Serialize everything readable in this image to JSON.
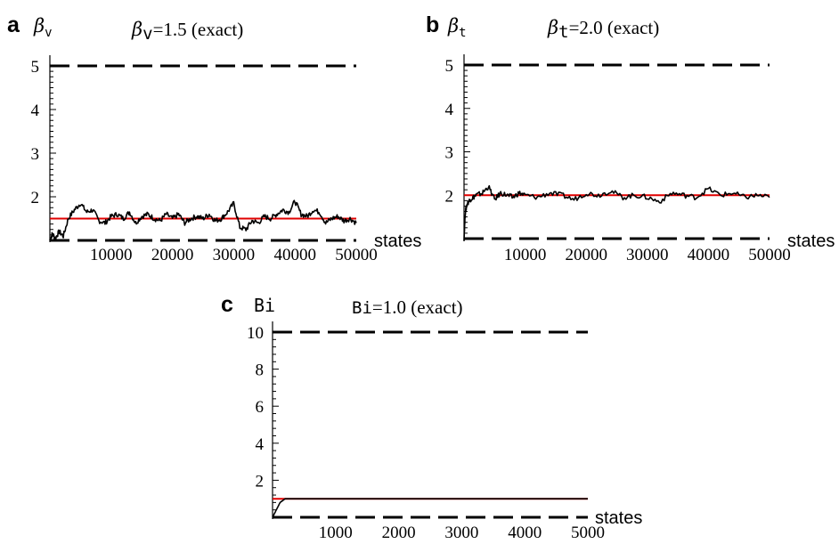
{
  "chart_data": [
    {
      "panel": "a",
      "type": "line",
      "ylabel_symbol": "β",
      "ylabel_sub": "v",
      "title_symbol": "β",
      "title_sub": "v",
      "title_text": "=1.5 (exact)",
      "xlabel": "states",
      "xlim": [
        0,
        50000
      ],
      "ylim": [
        1,
        5
      ],
      "xticks": [
        10000,
        20000,
        30000,
        40000,
        50000
      ],
      "yticks": [
        2,
        3,
        4,
        5
      ],
      "reference_lines": {
        "exact": 1.5,
        "upper_bound": 5,
        "lower_bound": 1
      },
      "series": [
        {
          "x": [
            0,
            400,
            900,
            1500,
            2200,
            3000,
            4000,
            5000,
            6000,
            7000,
            8000,
            9000,
            10000,
            11000,
            12000,
            13000,
            14000,
            15000,
            16000,
            17000,
            18000,
            19000,
            20000,
            21000,
            22000,
            23000,
            24000,
            25000,
            26000,
            27000,
            28000,
            29000,
            30000,
            31000,
            32000,
            33000,
            34000,
            35000,
            36000,
            37000,
            38000,
            39000,
            40000,
            41000,
            42000,
            43000,
            44000,
            45000,
            46000,
            47000,
            48000,
            49000,
            50000
          ],
          "y": [
            1.0,
            1.15,
            1.05,
            1.2,
            1.1,
            1.5,
            1.7,
            1.85,
            1.65,
            1.7,
            1.45,
            1.4,
            1.55,
            1.6,
            1.5,
            1.65,
            1.4,
            1.55,
            1.6,
            1.5,
            1.45,
            1.6,
            1.5,
            1.6,
            1.4,
            1.5,
            1.55,
            1.5,
            1.6,
            1.45,
            1.5,
            1.65,
            1.85,
            1.3,
            1.25,
            1.45,
            1.4,
            1.55,
            1.5,
            1.6,
            1.7,
            1.65,
            1.9,
            1.6,
            1.55,
            1.7,
            1.65,
            1.4,
            1.5,
            1.55,
            1.45,
            1.5,
            1.4
          ]
        }
      ]
    },
    {
      "panel": "b",
      "type": "line",
      "ylabel_symbol": "β",
      "ylabel_sub": "t",
      "title_symbol": "β",
      "title_sub": "t",
      "title_text": "=2.0 (exact)",
      "xlabel": "states",
      "xlim": [
        0,
        50000
      ],
      "ylim": [
        1,
        5
      ],
      "xticks": [
        10000,
        20000,
        30000,
        40000,
        50000
      ],
      "yticks": [
        2,
        3,
        4,
        5
      ],
      "reference_lines": {
        "exact": 2.0,
        "upper_bound": 5,
        "lower_bound": 1
      },
      "series": [
        {
          "x": [
            0,
            200,
            500,
            1000,
            1500,
            2000,
            3000,
            4000,
            5000,
            6000,
            7000,
            8000,
            9000,
            10000,
            12000,
            14000,
            16000,
            18000,
            20000,
            22000,
            24000,
            26000,
            28000,
            30000,
            32000,
            34000,
            36000,
            38000,
            40000,
            42000,
            44000,
            46000,
            48000,
            50000
          ],
          "y": [
            1.0,
            1.6,
            1.8,
            1.9,
            1.95,
            2.0,
            2.05,
            2.2,
            1.9,
            2.05,
            2.0,
            1.95,
            2.05,
            2.0,
            1.95,
            2.05,
            2.0,
            1.9,
            2.05,
            2.0,
            2.1,
            1.95,
            2.0,
            1.95,
            1.85,
            2.05,
            2.0,
            1.95,
            2.15,
            2.0,
            2.05,
            1.95,
            2.0,
            1.95
          ]
        }
      ]
    },
    {
      "panel": "c",
      "type": "line",
      "ylabel": "Bi",
      "title_label": "Bi",
      "title_text": "=1.0 (exact)",
      "xlabel": "states",
      "xlim": [
        0,
        5000
      ],
      "ylim": [
        0,
        10
      ],
      "xticks": [
        1000,
        2000,
        3000,
        4000,
        5000
      ],
      "yticks": [
        2,
        4,
        6,
        8,
        10
      ],
      "reference_lines": {
        "exact": 1.0,
        "upper_bound": 10,
        "lower_bound": 0
      },
      "series": [
        {
          "x": [
            0,
            60,
            120,
            200,
            300,
            400,
            1000,
            2000,
            3000,
            4000,
            5000
          ],
          "y": [
            0.0,
            0.4,
            0.8,
            1.0,
            1.0,
            1.0,
            1.0,
            1.0,
            1.0,
            1.0,
            1.0
          ]
        }
      ]
    }
  ]
}
